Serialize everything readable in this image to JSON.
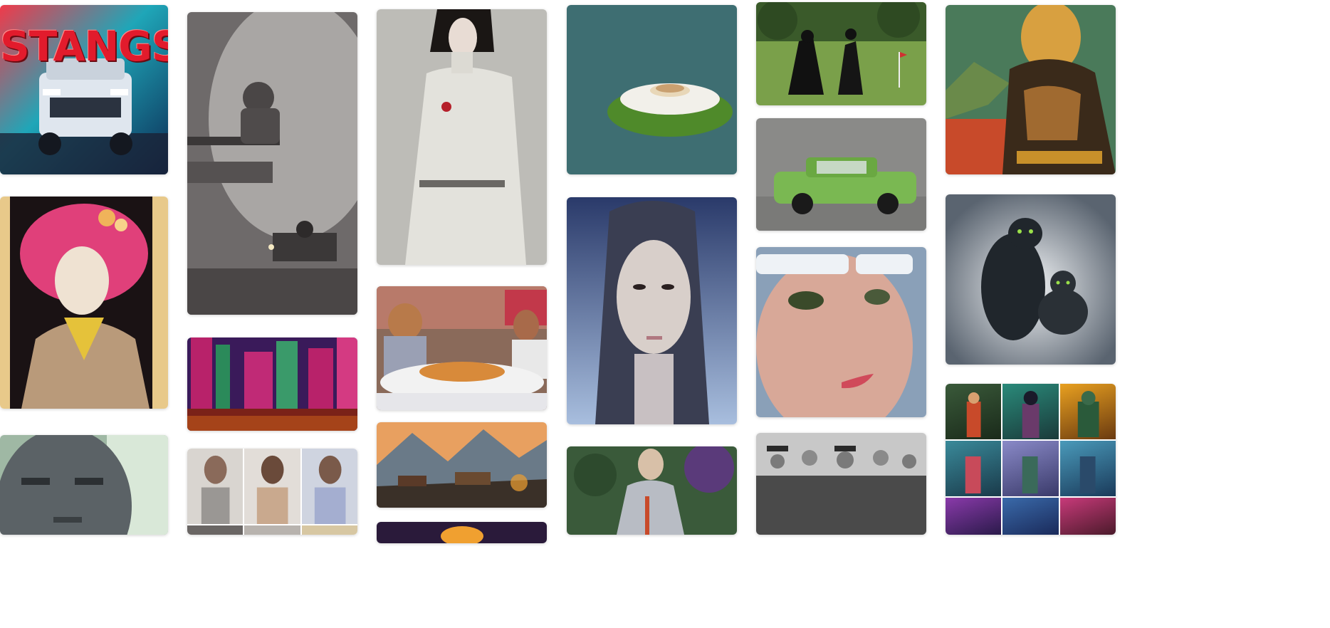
{
  "gallery": {
    "truck_tile": {
      "poster_text": "STANGS"
    },
    "columns": [
      [
        "truck-poster",
        "geisha-portrait",
        "stone-face-warrior"
      ],
      [
        "robot-room",
        "neon-forest",
        "woman-portrait-grid"
      ],
      [
        "pale-woman-dress",
        "pizza-diner",
        "mountain-village",
        "fire-glow"
      ],
      [
        "floating-island",
        "asian-woman-portrait",
        "knight-in-garden"
      ],
      [
        "darth-vader-golf",
        "green-muscle-car",
        "cyborg-face",
        "military-officers"
      ],
      [
        "mona-lisa",
        "black-cats",
        "fantasy-character-grid"
      ]
    ]
  }
}
